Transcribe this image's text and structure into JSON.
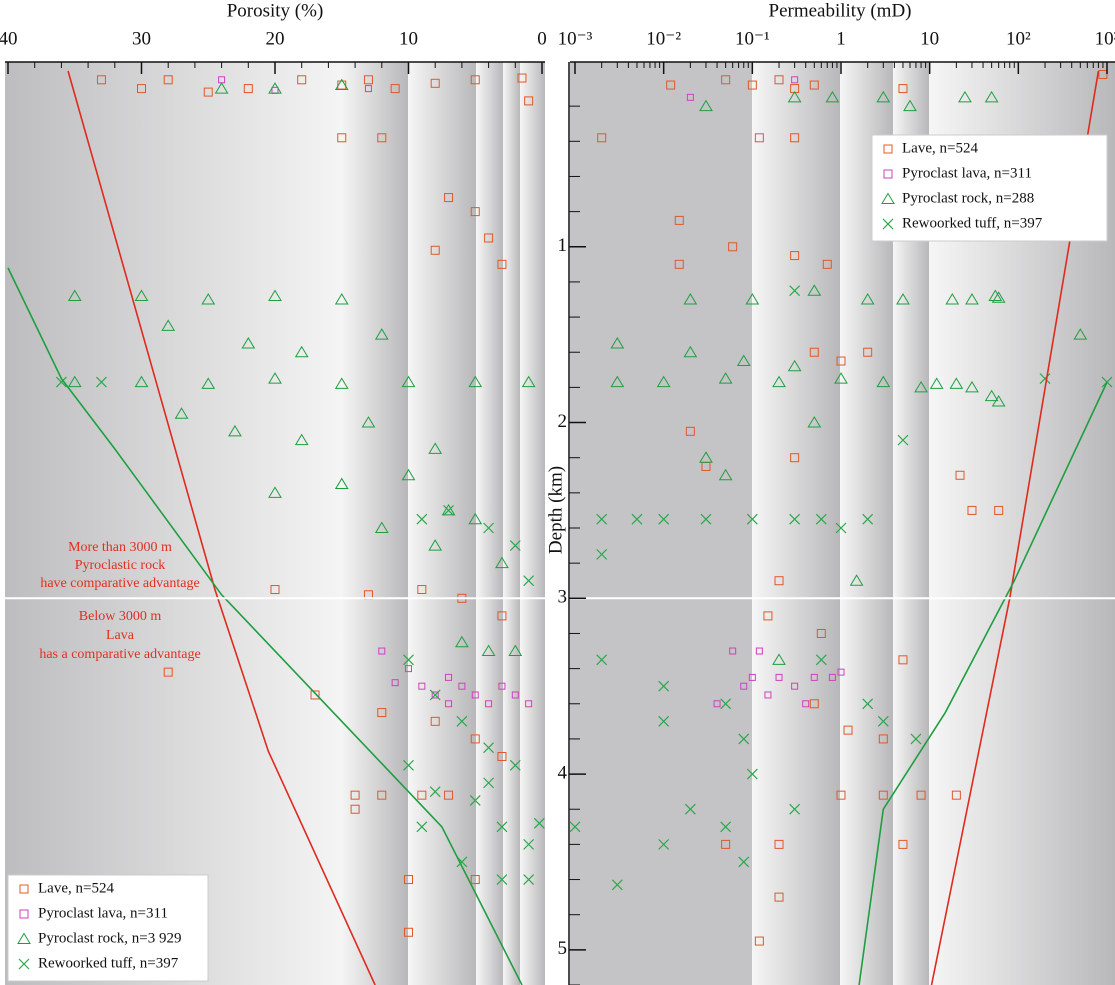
{
  "chart_data": [
    {
      "type": "scatter",
      "title": "Porosity (%)",
      "ylabel": "Depth (km)",
      "xlim": [
        40,
        0
      ],
      "xticks": [
        40,
        30,
        20,
        10,
        0
      ],
      "xminorticks": [
        38,
        36,
        34,
        32,
        28,
        26,
        24,
        22,
        18,
        16,
        14,
        12,
        8,
        6,
        4,
        2
      ],
      "ylim": [
        0,
        5.2
      ],
      "yticks": [
        1,
        2,
        3,
        4,
        5
      ],
      "yminorticks": [
        0.2,
        0.4,
        0.6,
        0.8,
        1.2,
        1.4,
        1.6,
        1.8,
        2.2,
        2.4,
        2.6,
        2.8,
        3.2,
        3.4,
        3.6,
        3.8,
        4.2,
        4.4,
        4.6,
        4.8,
        5.2
      ],
      "hline": 3,
      "legend": "lower left",
      "annotations": [
        "More than 3000 m",
        "Pyroclastic rock",
        "have comparative advantage",
        "Below 3000 m",
        "Lava",
        "has a comparative advantage"
      ],
      "series": [
        {
          "name": "Lave, n=524",
          "color": "#e0582a",
          "marker": "square",
          "x": [
            33,
            30,
            28,
            25,
            22,
            18,
            15,
            13,
            11,
            8,
            5,
            1.5,
            1,
            12,
            15,
            7,
            5,
            4,
            3,
            8,
            20,
            13,
            9,
            6,
            3,
            28,
            17,
            12,
            8,
            5,
            3,
            14,
            10,
            5,
            7,
            10,
            14,
            12,
            9
          ],
          "y": [
            0.05,
            0.1,
            0.05,
            0.12,
            0.1,
            0.05,
            0.08,
            0.05,
            0.1,
            0.07,
            0.05,
            0.04,
            0.17,
            0.38,
            0.38,
            0.72,
            0.8,
            0.95,
            1.1,
            1.02,
            2.95,
            2.98,
            2.95,
            3.0,
            3.1,
            3.42,
            3.55,
            3.65,
            3.7,
            3.8,
            3.9,
            4.12,
            4.6,
            4.6,
            4.12,
            4.9,
            4.2,
            4.12,
            4.12
          ]
        },
        {
          "name": "Pyroclast  lava, n=311",
          "color": "#d040c0",
          "marker": "small-square",
          "x": [
            12,
            10,
            9,
            8,
            7,
            6,
            5,
            4,
            3,
            2,
            1,
            11,
            7,
            13,
            20,
            24
          ],
          "y": [
            3.3,
            3.4,
            3.5,
            3.55,
            3.45,
            3.5,
            3.55,
            3.6,
            3.5,
            3.55,
            3.6,
            3.48,
            3.6,
            0.1,
            0.11,
            0.05
          ]
        },
        {
          "name": "Pyroclast rock, n=3 929",
          "color": "#1f9e40",
          "marker": "triangle",
          "x": [
            35,
            30,
            25,
            20,
            15,
            28,
            22,
            18,
            12,
            35,
            30,
            25,
            20,
            15,
            10,
            5,
            1,
            27,
            23,
            18,
            13,
            8,
            20,
            15,
            10,
            7,
            5,
            12,
            8,
            3,
            6,
            4,
            2,
            24,
            20,
            15
          ],
          "y": [
            1.28,
            1.28,
            1.3,
            1.28,
            1.3,
            1.45,
            1.55,
            1.6,
            1.5,
            1.77,
            1.77,
            1.78,
            1.75,
            1.78,
            1.77,
            1.77,
            1.77,
            1.95,
            2.05,
            2.1,
            2.0,
            2.15,
            2.4,
            2.35,
            2.3,
            2.5,
            2.55,
            2.6,
            2.7,
            2.8,
            3.25,
            3.3,
            3.3,
            0.1,
            0.1,
            0.08
          ]
        },
        {
          "name": "Rewoorked tuff, n=397",
          "color": "#2aa84a",
          "marker": "x",
          "x": [
            36,
            33,
            9,
            7,
            4,
            2,
            1,
            10,
            8,
            6,
            4,
            2,
            10,
            8,
            5,
            3,
            1,
            6,
            3,
            1,
            0.2,
            4,
            9
          ],
          "y": [
            1.77,
            1.77,
            2.55,
            2.5,
            2.6,
            2.7,
            2.9,
            3.35,
            3.55,
            3.7,
            3.85,
            3.95,
            3.95,
            4.1,
            4.15,
            4.3,
            4.4,
            4.5,
            4.6,
            4.6,
            4.28,
            4.05,
            4.3
          ]
        }
      ],
      "lines": [
        {
          "color": "#e02a1e",
          "x": [
            35.5,
            24.5,
            20.5,
            12.5
          ],
          "y": [
            0,
            2.95,
            3.87,
            5.2
          ]
        },
        {
          "color": "#1f9e40",
          "x": [
            40,
            36,
            32,
            24,
            14,
            7.5,
            1.5
          ],
          "y": [
            1.12,
            1.75,
            2.15,
            2.98,
            3.78,
            4.3,
            5.2
          ]
        }
      ]
    },
    {
      "type": "scatter",
      "title": "Permeability (mD)",
      "log": true,
      "xlim": [
        0.001,
        1000
      ],
      "xticks": [
        {
          "value": 0.001,
          "label": "10⁻³"
        },
        {
          "value": 0.01,
          "label": "10⁻²"
        },
        {
          "value": 0.1,
          "label": "10⁻¹"
        },
        1,
        10,
        {
          "value": 100,
          "label": "10²"
        },
        {
          "value": 1000,
          "label": "10³"
        }
      ],
      "xminorticks": [
        0.002,
        0.003,
        0.004,
        0.005,
        0.006,
        0.007,
        0.008,
        0.009,
        0.02,
        0.03,
        0.04,
        0.05,
        0.06,
        0.07,
        0.08,
        0.09,
        0.2,
        0.3,
        0.4,
        0.5,
        0.6,
        0.7,
        0.8,
        0.9,
        2,
        3,
        4,
        5,
        6,
        7,
        8,
        9,
        20,
        30,
        40,
        50,
        60,
        70,
        80,
        90,
        200,
        300,
        400,
        500,
        600,
        700,
        800,
        900
      ],
      "ylim": [
        0,
        5.2
      ],
      "hline": 3,
      "legend": "upper right",
      "series": [
        {
          "name": "Lave, n=524",
          "color": "#e0582a",
          "marker": "square",
          "x": [
            0.012,
            0.05,
            0.1,
            0.2,
            0.3,
            0.5,
            5,
            900,
            0.002,
            0.12,
            0.3,
            0.015,
            0.06,
            0.3,
            0.015,
            0.7,
            0.5,
            1,
            2,
            0.02,
            0.03,
            0.3,
            22,
            30,
            60,
            0.2,
            0.15,
            0.6,
            5,
            0.5,
            1.2,
            3,
            1,
            3,
            8,
            20,
            0.2,
            0.05,
            0.2,
            0.12,
            5
          ],
          "y": [
            0.08,
            0.05,
            0.08,
            0.05,
            0.1,
            0.08,
            0.1,
            0.02,
            0.38,
            0.38,
            0.38,
            0.85,
            1.0,
            1.05,
            1.1,
            1.1,
            1.6,
            1.65,
            1.6,
            2.05,
            2.25,
            2.2,
            2.3,
            2.5,
            2.5,
            2.9,
            3.1,
            3.2,
            3.35,
            3.6,
            3.75,
            3.8,
            4.12,
            4.12,
            4.12,
            4.12,
            4.4,
            4.4,
            4.7,
            4.95,
            4.4
          ]
        },
        {
          "name": "Pyroclast  lava, n=311",
          "color": "#d040c0",
          "marker": "small-square",
          "x": [
            0.02,
            0.3,
            0.06,
            0.08,
            0.1,
            0.15,
            0.2,
            0.3,
            0.4,
            0.5,
            0.8,
            1,
            0.04,
            0.12
          ],
          "y": [
            0.15,
            0.05,
            3.3,
            3.5,
            3.45,
            3.55,
            3.45,
            3.5,
            3.6,
            3.45,
            3.45,
            3.42,
            3.6,
            3.3
          ]
        },
        {
          "name": "Pyroclast rock, n=288",
          "color": "#1f9e40",
          "marker": "triangle",
          "x": [
            0.03,
            0.3,
            0.8,
            3,
            6,
            25,
            50,
            0.02,
            0.1,
            0.5,
            2,
            5,
            18,
            30,
            55,
            60,
            500,
            0.003,
            0.01,
            0.05,
            0.2,
            1,
            3,
            8,
            12,
            20,
            30,
            50,
            60,
            0.003,
            0.02,
            0.08,
            0.3,
            0.05,
            0.03,
            1.5,
            0.5,
            0.2
          ],
          "y": [
            0.2,
            0.15,
            0.15,
            0.15,
            0.2,
            0.15,
            0.15,
            1.3,
            1.3,
            1.25,
            1.3,
            1.3,
            1.3,
            1.3,
            1.28,
            1.29,
            1.5,
            1.77,
            1.77,
            1.75,
            1.77,
            1.75,
            1.77,
            1.8,
            1.78,
            1.78,
            1.8,
            1.85,
            1.88,
            1.55,
            1.6,
            1.65,
            1.68,
            2.3,
            2.2,
            2.9,
            2.0,
            3.35
          ]
        },
        {
          "name": "Rewoorked tuff, n=397",
          "color": "#2aa84a",
          "marker": "x",
          "x": [
            0.3,
            200,
            1000,
            0.002,
            0.005,
            0.01,
            0.03,
            0.1,
            0.3,
            0.6,
            1,
            2,
            0.002,
            0.01,
            0.01,
            0.05,
            0.08,
            0.1,
            0.02,
            0.05,
            0.08,
            0.003,
            0.01,
            0.6,
            2,
            3,
            7,
            5,
            0.3,
            0.002,
            0.001
          ],
          "y": [
            1.25,
            1.75,
            1.77,
            2.55,
            2.55,
            2.55,
            2.55,
            2.55,
            2.55,
            2.55,
            2.6,
            2.55,
            3.35,
            3.5,
            3.7,
            3.6,
            3.8,
            4.0,
            4.2,
            4.3,
            4.5,
            4.63,
            4.4,
            3.35,
            3.6,
            3.7,
            3.8,
            2.1,
            4.2,
            2.75,
            4.3
          ]
        }
      ],
      "lines": [
        {
          "color": "#e02a1e",
          "x": [
            800,
            80,
            10.5
          ],
          "y": [
            0,
            3.0,
            5.2
          ]
        },
        {
          "color": "#1f9e40",
          "x": [
            1000,
            90,
            15,
            3,
            1.6
          ],
          "y": [
            1.77,
            2.9,
            3.65,
            4.2,
            5.2
          ]
        }
      ]
    }
  ]
}
